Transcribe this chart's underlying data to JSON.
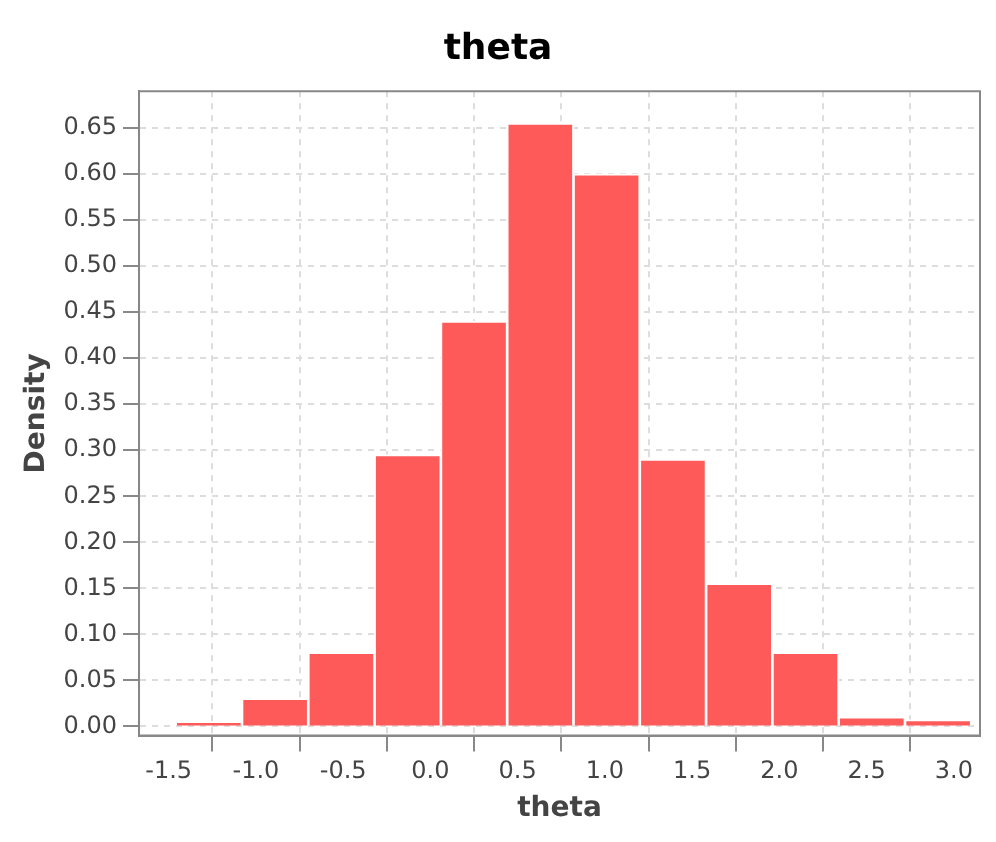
{
  "chart_data": {
    "type": "histogram",
    "title": "theta",
    "xlabel": "theta",
    "ylabel": "Density",
    "bins": [
      -1.46,
      -1.08,
      -0.7,
      -0.32,
      0.06,
      0.44,
      0.82,
      1.2,
      1.58,
      1.96,
      2.34,
      2.72,
      3.1
    ],
    "values": [
      0.005,
      0.03,
      0.08,
      0.295,
      0.44,
      0.655,
      0.6,
      0.29,
      0.155,
      0.08,
      0.01,
      0.007
    ],
    "color": "#ff5a5a",
    "xlim": [
      -1.67,
      3.15
    ],
    "xticks": [
      -1.5,
      {
        "value": -1,
        "label": "-1.0"
      },
      -0.5,
      {
        "value": 0,
        "label": "0.0"
      },
      0.5,
      {
        "value": 1,
        "label": "1.0"
      },
      1.5,
      {
        "value": 2,
        "label": "2.0"
      },
      2.5,
      {
        "value": 3,
        "label": "3.0"
      }
    ],
    "ylim": [
      -0.01,
      0.69
    ],
    "yticks": [
      {
        "value": 0,
        "label": "0.00"
      },
      0.05,
      {
        "value": 0.1,
        "label": "0.10"
      },
      0.15,
      {
        "value": 0.2,
        "label": "0.20"
      },
      0.25,
      {
        "value": 0.3,
        "label": "0.30"
      },
      0.35,
      {
        "value": 0.4,
        "label": "0.40"
      },
      0.45,
      {
        "value": 0.5,
        "label": "0.50"
      },
      0.55,
      {
        "value": 0.6,
        "label": "0.60"
      },
      0.65
    ],
    "grid": true,
    "legend": false
  }
}
